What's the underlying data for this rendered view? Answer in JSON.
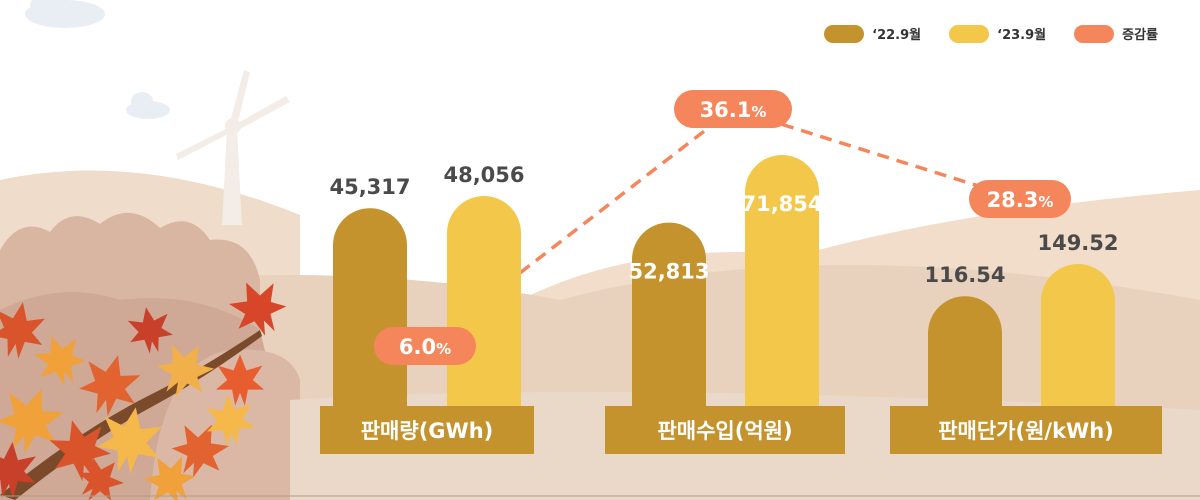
{
  "colors": {
    "bar_2022": "#c4932e",
    "bar_2023": "#f2c74a",
    "growth": "#f5865c",
    "category_box": "#c4932e"
  },
  "legend": [
    {
      "label": "‘22.9월",
      "color": "#c4932e"
    },
    {
      "label": "‘23.9월",
      "color": "#f2c74a"
    },
    {
      "label": "증감률",
      "color": "#f5865c"
    }
  ],
  "chart_data": {
    "type": "bar",
    "categories": [
      "판매량(GWh)",
      "판매수입(억원)",
      "판매단가(원/kWh)"
    ],
    "series": [
      {
        "name": "‘22.9월",
        "values": [
          "45,317",
          "52,813",
          "116.54"
        ]
      },
      {
        "name": "‘23.9월",
        "values": [
          "48,056",
          "71,854",
          "149.52"
        ]
      }
    ],
    "growth": {
      "name": "증감률",
      "values": [
        "6.0",
        "36.1",
        "28.3"
      ],
      "unit": "%"
    },
    "legend_position": "top-right",
    "grid": false
  }
}
